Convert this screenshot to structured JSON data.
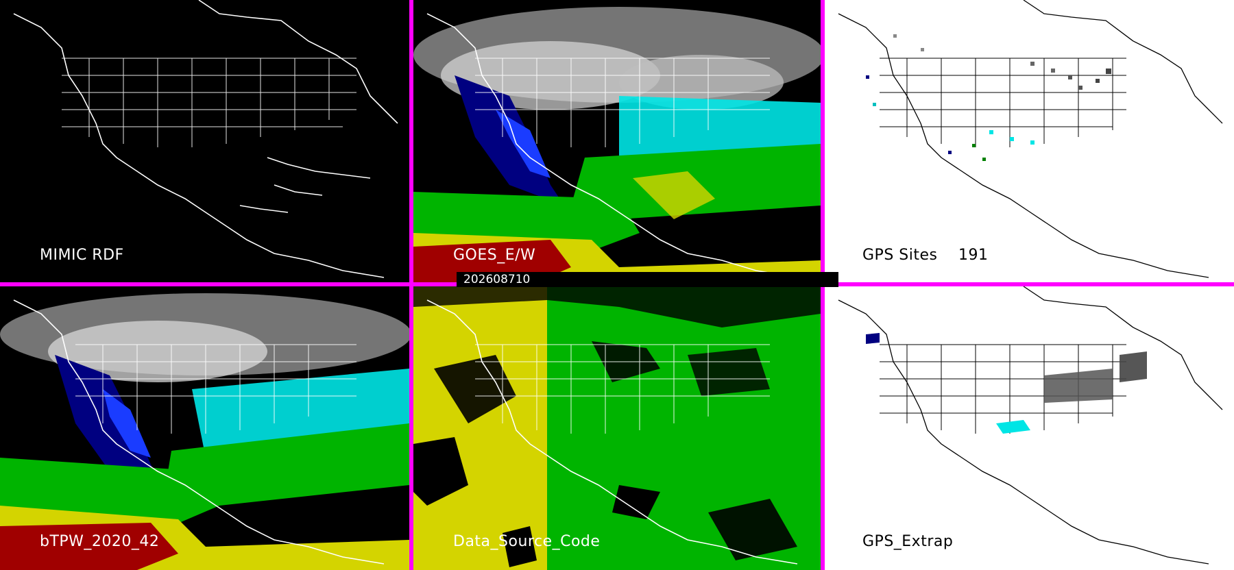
{
  "timestamp": "202608710",
  "panels": {
    "mimic": {
      "label": "MIMIC RDF"
    },
    "goes": {
      "label": "GOES_E/W"
    },
    "gps_sites": {
      "label": "GPS Sites",
      "count": "191"
    },
    "btpw": {
      "label": "bTPW_2020_42"
    },
    "data_source": {
      "label": "Data_Source_Code"
    },
    "gps_extrap": {
      "label": "GPS_Extrap"
    }
  },
  "colors": {
    "divider": "#ff00ff",
    "moisture_low": "#d8d8d8",
    "moisture_dry": "#000080",
    "moisture_mid": "#00e5e5",
    "moisture_green": "#00b400",
    "moisture_yellow": "#d4d400",
    "moisture_high": "#a00000"
  }
}
